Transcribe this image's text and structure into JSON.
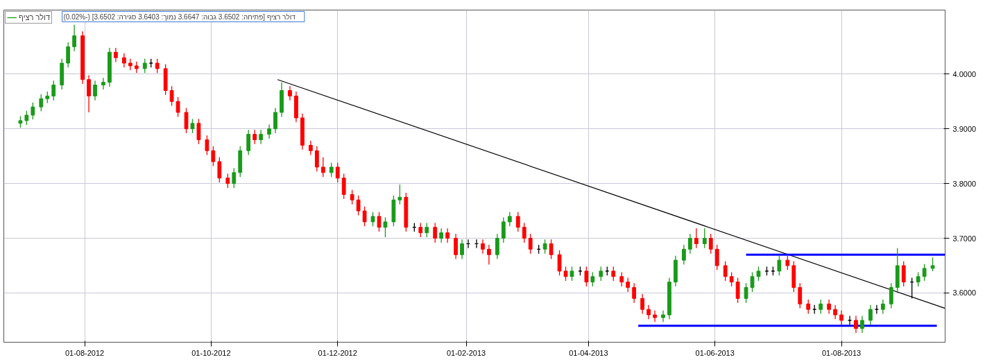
{
  "chart_data": {
    "type": "candlestick",
    "xlim": [
      "2012-06-23",
      "2013-09-20"
    ],
    "ylim": [
      3.51,
      4.117
    ],
    "xticks": [
      {
        "value": "2012-08-01",
        "label": "01-08-2012"
      },
      {
        "value": "2012-10-01",
        "label": "01-10-2012"
      },
      {
        "value": "2012-12-01",
        "label": "01-12-2012"
      },
      {
        "value": "2013-02-01",
        "label": "01-02-2013"
      },
      {
        "value": "2013-04-01",
        "label": "01-04-2013"
      },
      {
        "value": "2013-06-01",
        "label": "01-06-2013"
      },
      {
        "value": "2013-08-01",
        "label": "01-08-2013"
      }
    ],
    "yticks": [
      {
        "value": 3.6,
        "label": "3.6000"
      },
      {
        "value": 3.7,
        "label": "3.7000"
      },
      {
        "value": 3.8,
        "label": "3.8000"
      },
      {
        "value": 3.9,
        "label": "3.9000"
      },
      {
        "value": 4.0,
        "label": "4.0000"
      }
    ],
    "grid": true,
    "legend": "top left",
    "annotations": [
      "דולר רציף [פתיחה: 3.6502  גבוה: 3.6647  נמוך: 3.6403  סגירה: 3.6502]  (-0.02%)"
    ],
    "series": [
      {
        "type": "line",
        "color": "#000000",
        "x": [
          "2012-11-02",
          "2013-09-20"
        ],
        "values": [
          3.99,
          3.572
        ]
      },
      {
        "type": "line",
        "color": "#0000ff",
        "x": [
          "2013-06-16",
          "2013-09-20"
        ],
        "values": [
          3.67,
          3.67
        ]
      },
      {
        "type": "line",
        "color": "#0000ff",
        "x": [
          "2013-04-25",
          "2013-09-16"
        ],
        "values": [
          3.54,
          3.54
        ]
      },
      {
        "type": "candlestick",
        "name": "דולר רציף",
        "x": [
          "2012-07-01",
          "2012-07-04",
          "2012-07-07",
          "2012-07-11",
          "2012-07-14",
          "2012-07-17",
          "2012-07-21",
          "2012-07-24",
          "2012-07-27",
          "2012-07-31",
          "2012-08-03",
          "2012-08-06",
          "2012-08-10",
          "2012-08-13",
          "2012-08-16",
          "2012-08-20",
          "2012-08-23",
          "2012-08-26",
          "2012-08-30",
          "2012-09-02",
          "2012-09-05",
          "2012-09-09",
          "2012-09-12",
          "2012-09-15",
          "2012-09-19",
          "2012-09-22",
          "2012-09-25",
          "2012-09-29",
          "2012-10-02",
          "2012-10-05",
          "2012-10-09",
          "2012-10-12",
          "2012-10-15",
          "2012-10-19",
          "2012-10-22",
          "2012-10-25",
          "2012-10-29",
          "2012-11-01",
          "2012-11-04",
          "2012-11-08",
          "2012-11-11",
          "2012-11-14",
          "2012-11-18",
          "2012-11-21",
          "2012-11-24",
          "2012-11-28",
          "2012-12-01",
          "2012-12-04",
          "2012-12-08",
          "2012-12-11",
          "2012-12-14",
          "2012-12-18",
          "2012-12-21",
          "2012-12-24",
          "2012-12-28",
          "2012-12-31",
          "2013-01-03",
          "2013-01-07",
          "2013-01-10",
          "2013-01-13",
          "2013-01-17",
          "2013-01-20",
          "2013-01-23",
          "2013-01-27",
          "2013-01-30",
          "2013-02-02",
          "2013-02-06",
          "2013-02-09",
          "2013-02-12",
          "2013-02-16",
          "2013-02-19",
          "2013-02-22",
          "2013-02-26",
          "2013-03-01",
          "2013-03-04",
          "2013-03-08",
          "2013-03-11",
          "2013-03-14",
          "2013-03-18",
          "2013-03-21",
          "2013-03-24",
          "2013-03-28",
          "2013-03-31",
          "2013-04-03",
          "2013-04-07",
          "2013-04-10",
          "2013-04-13",
          "2013-04-17",
          "2013-04-20",
          "2013-04-23",
          "2013-04-27",
          "2013-04-30",
          "2013-05-03",
          "2013-05-07",
          "2013-05-10",
          "2013-05-13",
          "2013-05-17",
          "2013-05-20",
          "2013-05-23",
          "2013-05-27",
          "2013-05-30",
          "2013-06-02",
          "2013-06-06",
          "2013-06-09",
          "2013-06-12",
          "2013-06-16",
          "2013-06-19",
          "2013-06-22",
          "2013-06-26",
          "2013-06-29",
          "2013-07-02",
          "2013-07-06",
          "2013-07-09",
          "2013-07-12",
          "2013-07-16",
          "2013-07-19",
          "2013-07-22",
          "2013-07-26",
          "2013-07-29",
          "2013-08-01",
          "2013-08-05",
          "2013-08-08",
          "2013-08-11",
          "2013-08-15",
          "2013-08-18",
          "2013-08-21",
          "2013-08-25",
          "2013-08-28",
          "2013-08-31",
          "2013-09-04",
          "2013-09-07",
          "2013-09-10",
          "2013-09-14"
        ],
        "ohlc": [
          [
            3.91,
            3.923,
            3.902,
            3.915
          ],
          [
            3.915,
            3.933,
            3.907,
            3.925
          ],
          [
            3.925,
            3.948,
            3.917,
            3.94
          ],
          [
            3.94,
            3.963,
            3.932,
            3.955
          ],
          [
            3.955,
            3.968,
            3.947,
            3.96
          ],
          [
            3.96,
            3.988,
            3.952,
            3.98
          ],
          [
            3.98,
            4.028,
            3.972,
            4.02
          ],
          [
            4.02,
            4.058,
            4.012,
            4.05
          ],
          [
            4.05,
            4.09,
            4.042,
            4.07
          ],
          [
            4.07,
            4.078,
            3.982,
            3.99
          ],
          [
            3.99,
            3.998,
            3.93,
            3.96
          ],
          [
            3.96,
            3.988,
            3.952,
            3.98
          ],
          [
            3.98,
            3.993,
            3.972,
            3.985
          ],
          [
            3.985,
            4.048,
            3.977,
            4.04
          ],
          [
            4.04,
            4.048,
            4.022,
            4.03
          ],
          [
            4.03,
            4.038,
            4.012,
            4.02
          ],
          [
            4.02,
            4.028,
            4.007,
            4.015
          ],
          [
            4.015,
            4.023,
            4.002,
            4.01
          ],
          [
            4.01,
            4.028,
            4.002,
            4.02
          ],
          [
            4.02,
            4.028,
            4.012,
            4.02
          ],
          [
            4.02,
            4.028,
            4.002,
            4.01
          ],
          [
            4.01,
            4.018,
            3.962,
            3.97
          ],
          [
            3.97,
            3.978,
            3.942,
            3.95
          ],
          [
            3.95,
            3.958,
            3.922,
            3.93
          ],
          [
            3.93,
            3.938,
            3.892,
            3.9
          ],
          [
            3.9,
            3.918,
            3.892,
            3.91
          ],
          [
            3.91,
            3.918,
            3.872,
            3.88
          ],
          [
            3.88,
            3.888,
            3.852,
            3.86
          ],
          [
            3.86,
            3.868,
            3.832,
            3.84
          ],
          [
            3.84,
            3.848,
            3.802,
            3.81
          ],
          [
            3.81,
            3.818,
            3.792,
            3.8
          ],
          [
            3.8,
            3.828,
            3.792,
            3.82
          ],
          [
            3.82,
            3.868,
            3.812,
            3.86
          ],
          [
            3.86,
            3.898,
            3.852,
            3.89
          ],
          [
            3.89,
            3.898,
            3.872,
            3.88
          ],
          [
            3.88,
            3.898,
            3.872,
            3.89
          ],
          [
            3.89,
            3.908,
            3.882,
            3.9
          ],
          [
            3.9,
            3.938,
            3.892,
            3.93
          ],
          [
            3.93,
            3.985,
            3.922,
            3.97
          ],
          [
            3.97,
            3.978,
            3.952,
            3.96
          ],
          [
            3.96,
            3.968,
            3.912,
            3.92
          ],
          [
            3.92,
            3.928,
            3.862,
            3.87
          ],
          [
            3.87,
            3.878,
            3.852,
            3.86
          ],
          [
            3.86,
            3.868,
            3.822,
            3.83
          ],
          [
            3.83,
            3.848,
            3.812,
            3.82
          ],
          [
            3.82,
            3.838,
            3.812,
            3.83
          ],
          [
            3.83,
            3.838,
            3.802,
            3.81
          ],
          [
            3.81,
            3.818,
            3.772,
            3.78
          ],
          [
            3.78,
            3.788,
            3.762,
            3.77
          ],
          [
            3.77,
            3.778,
            3.742,
            3.75
          ],
          [
            3.75,
            3.758,
            3.722,
            3.73
          ],
          [
            3.73,
            3.748,
            3.722,
            3.74
          ],
          [
            3.74,
            3.748,
            3.712,
            3.72
          ],
          [
            3.72,
            3.738,
            3.702,
            3.73
          ],
          [
            3.73,
            3.778,
            3.722,
            3.77
          ],
          [
            3.77,
            3.798,
            3.762,
            3.775
          ],
          [
            3.775,
            3.783,
            3.712,
            3.72
          ],
          [
            3.72,
            3.728,
            3.712,
            3.72
          ],
          [
            3.72,
            3.728,
            3.702,
            3.71
          ],
          [
            3.71,
            3.728,
            3.702,
            3.72
          ],
          [
            3.72,
            3.728,
            3.692,
            3.7
          ],
          [
            3.7,
            3.718,
            3.692,
            3.71
          ],
          [
            3.71,
            3.718,
            3.692,
            3.7
          ],
          [
            3.7,
            3.708,
            3.662,
            3.67
          ],
          [
            3.67,
            3.698,
            3.662,
            3.69
          ],
          [
            3.69,
            3.698,
            3.682,
            3.69
          ],
          [
            3.69,
            3.698,
            3.682,
            3.69
          ],
          [
            3.69,
            3.698,
            3.672,
            3.68
          ],
          [
            3.68,
            3.688,
            3.652,
            3.67
          ],
          [
            3.67,
            3.708,
            3.662,
            3.7
          ],
          [
            3.7,
            3.738,
            3.692,
            3.73
          ],
          [
            3.73,
            3.748,
            3.722,
            3.74
          ],
          [
            3.74,
            3.748,
            3.712,
            3.72
          ],
          [
            3.72,
            3.728,
            3.692,
            3.7
          ],
          [
            3.7,
            3.708,
            3.672,
            3.68
          ],
          [
            3.68,
            3.688,
            3.672,
            3.68
          ],
          [
            3.68,
            3.698,
            3.672,
            3.69
          ],
          [
            3.69,
            3.698,
            3.662,
            3.67
          ],
          [
            3.67,
            3.678,
            3.632,
            3.64
          ],
          [
            3.64,
            3.648,
            3.622,
            3.63
          ],
          [
            3.63,
            3.648,
            3.622,
            3.64
          ],
          [
            3.64,
            3.648,
            3.632,
            3.64
          ],
          [
            3.64,
            3.648,
            3.612,
            3.62
          ],
          [
            3.62,
            3.638,
            3.612,
            3.63
          ],
          [
            3.63,
            3.648,
            3.622,
            3.64
          ],
          [
            3.64,
            3.648,
            3.632,
            3.64
          ],
          [
            3.64,
            3.648,
            3.622,
            3.63
          ],
          [
            3.63,
            3.638,
            3.612,
            3.62
          ],
          [
            3.62,
            3.628,
            3.602,
            3.61
          ],
          [
            3.61,
            3.618,
            3.582,
            3.59
          ],
          [
            3.59,
            3.598,
            3.562,
            3.57
          ],
          [
            3.57,
            3.578,
            3.552,
            3.56
          ],
          [
            3.56,
            3.568,
            3.547,
            3.555
          ],
          [
            3.555,
            3.568,
            3.547,
            3.56
          ],
          [
            3.56,
            3.628,
            3.552,
            3.62
          ],
          [
            3.62,
            3.668,
            3.612,
            3.66
          ],
          [
            3.66,
            3.688,
            3.652,
            3.68
          ],
          [
            3.68,
            3.708,
            3.672,
            3.7
          ],
          [
            3.7,
            3.718,
            3.682,
            3.69
          ],
          [
            3.69,
            3.718,
            3.682,
            3.7
          ],
          [
            3.7,
            3.708,
            3.672,
            3.68
          ],
          [
            3.68,
            3.688,
            3.642,
            3.65
          ],
          [
            3.65,
            3.658,
            3.622,
            3.63
          ],
          [
            3.63,
            3.638,
            3.612,
            3.62
          ],
          [
            3.62,
            3.628,
            3.582,
            3.59
          ],
          [
            3.59,
            3.618,
            3.582,
            3.61
          ],
          [
            3.61,
            3.638,
            3.602,
            3.63
          ],
          [
            3.63,
            3.648,
            3.622,
            3.64
          ],
          [
            3.64,
            3.648,
            3.632,
            3.64
          ],
          [
            3.64,
            3.648,
            3.632,
            3.64
          ],
          [
            3.64,
            3.668,
            3.632,
            3.66
          ],
          [
            3.66,
            3.668,
            3.642,
            3.65
          ],
          [
            3.65,
            3.658,
            3.602,
            3.61
          ],
          [
            3.61,
            3.618,
            3.572,
            3.58
          ],
          [
            3.58,
            3.588,
            3.562,
            3.57
          ],
          [
            3.57,
            3.578,
            3.562,
            3.57
          ],
          [
            3.57,
            3.588,
            3.562,
            3.58
          ],
          [
            3.58,
            3.588,
            3.562,
            3.57
          ],
          [
            3.57,
            3.578,
            3.552,
            3.56
          ],
          [
            3.56,
            3.568,
            3.542,
            3.55
          ],
          [
            3.55,
            3.558,
            3.542,
            3.55
          ],
          [
            3.55,
            3.558,
            3.527,
            3.535
          ],
          [
            3.535,
            3.558,
            3.527,
            3.55
          ],
          [
            3.55,
            3.578,
            3.542,
            3.57
          ],
          [
            3.57,
            3.578,
            3.562,
            3.57
          ],
          [
            3.57,
            3.588,
            3.562,
            3.58
          ],
          [
            3.58,
            3.618,
            3.572,
            3.61
          ],
          [
            3.61,
            3.682,
            3.602,
            3.65
          ],
          [
            3.65,
            3.658,
            3.612,
            3.62
          ],
          [
            3.62,
            3.628,
            3.59,
            3.62
          ],
          [
            3.62,
            3.638,
            3.612,
            3.63
          ],
          [
            3.63,
            3.653,
            3.622,
            3.645
          ],
          [
            3.645,
            3.665,
            3.64,
            3.65
          ]
        ]
      }
    ]
  }
}
